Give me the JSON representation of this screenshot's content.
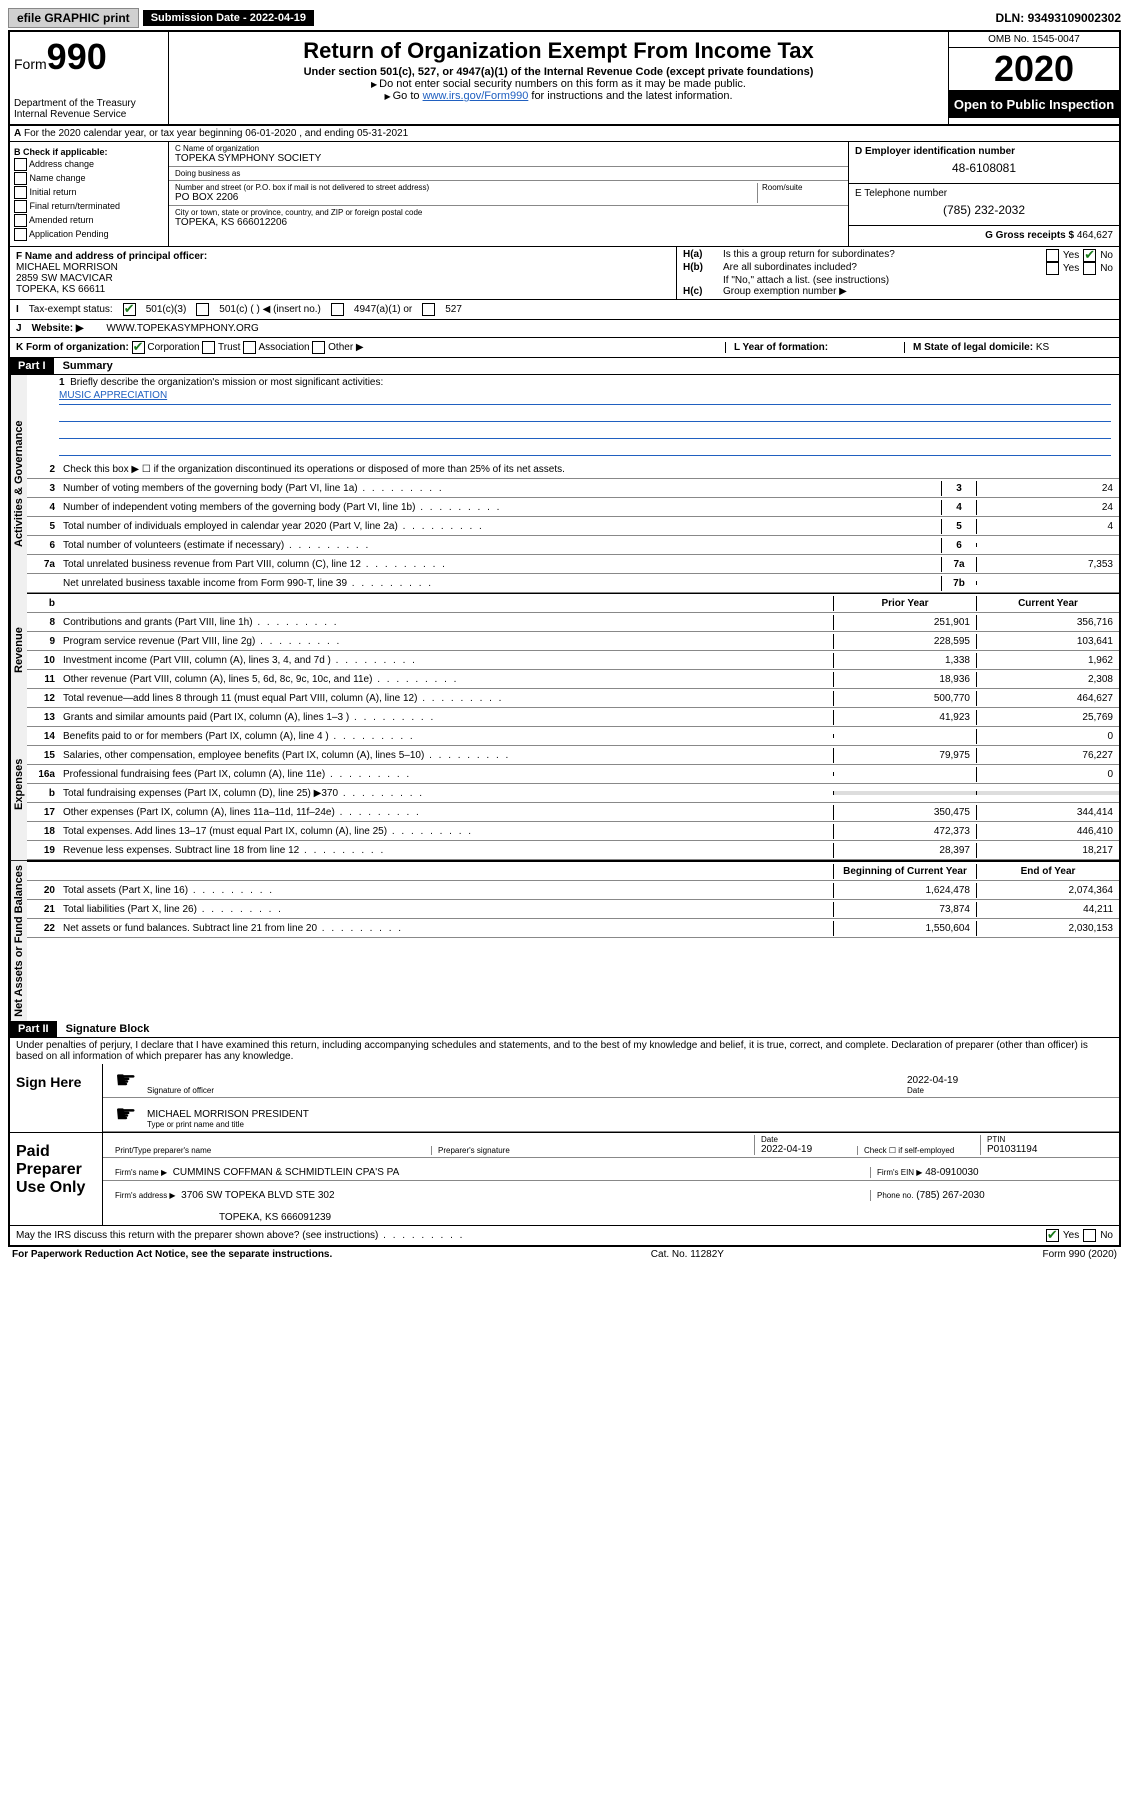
{
  "topbar": {
    "efile": "efile GRAPHIC print",
    "submission_label": "Submission Date - 2022-04-19",
    "dln_label": "DLN:",
    "dln": "93493109002302"
  },
  "header": {
    "form_word": "Form",
    "form_number": "990",
    "dept": "Department of the Treasury",
    "irs": "Internal Revenue Service",
    "title": "Return of Organization Exempt From Income Tax",
    "sub": "Under section 501(c), 527, or 4947(a)(1) of the Internal Revenue Code (except private foundations)",
    "instr1": "Do not enter social security numbers on this form as it may be made public.",
    "instr2_pre": "Go to ",
    "instr2_link": "www.irs.gov/Form990",
    "instr2_post": " for instructions and the latest information.",
    "omb": "OMB No. 1545-0047",
    "year": "2020",
    "inspection": "Open to Public Inspection"
  },
  "row_a": "For the 2020 calendar year, or tax year beginning 06-01-2020    , and ending 05-31-2021",
  "box_b": {
    "label": "B Check if applicable:",
    "items": [
      "Address change",
      "Name change",
      "Initial return",
      "Final return/terminated",
      "Amended return",
      "Application Pending"
    ]
  },
  "box_c": {
    "name_lbl": "C Name of organization",
    "name": "TOPEKA SYMPHONY SOCIETY",
    "dba_lbl": "Doing business as",
    "dba": "",
    "addr_lbl": "Number and street (or P.O. box if mail is not delivered to street address)",
    "room_lbl": "Room/suite",
    "addr": "PO BOX 2206",
    "city_lbl": "City or town, state or province, country, and ZIP or foreign postal code",
    "city": "TOPEKA, KS  666012206"
  },
  "box_d": {
    "lbl": "D Employer identification number",
    "val": "48-6108081"
  },
  "box_e": {
    "lbl": "E Telephone number",
    "val": "(785) 232-2032"
  },
  "box_g": {
    "lbl": "G Gross receipts $",
    "val": "464,627"
  },
  "box_f": {
    "lbl": "F  Name and address of principal officer:",
    "l1": "MICHAEL MORRISON",
    "l2": "2859 SW MACVICAR",
    "l3": "TOPEKA, KS  66611"
  },
  "box_h": {
    "ha": "Is this a group return for subordinates?",
    "hb": "Are all subordinates included?",
    "hnote": "If \"No,\" attach a list. (see instructions)",
    "hc": "Group exemption number ▶"
  },
  "tax_exempt": {
    "lbl": "Tax-exempt status:",
    "c1": "501(c)(3)",
    "c2": "501(c) (  ) ◀ (insert no.)",
    "c3": "4947(a)(1) or",
    "c4": "527"
  },
  "website": {
    "lbl": "Website: ▶",
    "val": "WWW.TOPEKASYMPHONY.ORG"
  },
  "korg": {
    "lbl": "K Form of organization:",
    "c1": "Corporation",
    "c2": "Trust",
    "c3": "Association",
    "c4": "Other ▶",
    "l_lbl": "L Year of formation:",
    "l_val": "",
    "m_lbl": "M State of legal domicile:",
    "m_val": "KS"
  },
  "part1": {
    "hdr": "Part I",
    "title": "Summary"
  },
  "mission": {
    "q": "Briefly describe the organization's mission or most significant activities:",
    "a": "MUSIC APPRECIATION"
  },
  "lines_top": {
    "l2": "Check this box ▶ ☐  if the organization discontinued its operations or disposed of more than 25% of its net assets.",
    "l3": {
      "t": "Number of voting members of the governing body (Part VI, line 1a)",
      "b": "3",
      "v": "24"
    },
    "l4": {
      "t": "Number of independent voting members of the governing body (Part VI, line 1b)",
      "b": "4",
      "v": "24"
    },
    "l5": {
      "t": "Total number of individuals employed in calendar year 2020 (Part V, line 2a)",
      "b": "5",
      "v": "4"
    },
    "l6": {
      "t": "Total number of volunteers (estimate if necessary)",
      "b": "6",
      "v": ""
    },
    "l7a": {
      "t": "Total unrelated business revenue from Part VIII, column (C), line 12",
      "b": "7a",
      "v": "7,353"
    },
    "l7b": {
      "t": "Net unrelated business taxable income from Form 990-T, line 39",
      "b": "7b",
      "v": ""
    }
  },
  "cols": {
    "prior": "Prior Year",
    "curr": "Current Year",
    "beg": "Beginning of Current Year",
    "end": "End of Year"
  },
  "revenue": [
    {
      "n": "8",
      "t": "Contributions and grants (Part VIII, line 1h)",
      "p": "251,901",
      "c": "356,716"
    },
    {
      "n": "9",
      "t": "Program service revenue (Part VIII, line 2g)",
      "p": "228,595",
      "c": "103,641"
    },
    {
      "n": "10",
      "t": "Investment income (Part VIII, column (A), lines 3, 4, and 7d )",
      "p": "1,338",
      "c": "1,962"
    },
    {
      "n": "11",
      "t": "Other revenue (Part VIII, column (A), lines 5, 6d, 8c, 9c, 10c, and 11e)",
      "p": "18,936",
      "c": "2,308"
    },
    {
      "n": "12",
      "t": "Total revenue—add lines 8 through 11 (must equal Part VIII, column (A), line 12)",
      "p": "500,770",
      "c": "464,627"
    }
  ],
  "expenses": [
    {
      "n": "13",
      "t": "Grants and similar amounts paid (Part IX, column (A), lines 1–3 )",
      "p": "41,923",
      "c": "25,769"
    },
    {
      "n": "14",
      "t": "Benefits paid to or for members (Part IX, column (A), line 4 )",
      "p": "",
      "c": "0"
    },
    {
      "n": "15",
      "t": "Salaries, other compensation, employee benefits (Part IX, column (A), lines 5–10)",
      "p": "79,975",
      "c": "76,227"
    },
    {
      "n": "16a",
      "t": "Professional fundraising fees (Part IX, column (A), line 11e)",
      "p": "",
      "c": "0"
    },
    {
      "n": "b",
      "t": "Total fundraising expenses (Part IX, column (D), line 25) ▶370",
      "p": "shade",
      "c": "shade"
    },
    {
      "n": "17",
      "t": "Other expenses (Part IX, column (A), lines 11a–11d, 11f–24e)",
      "p": "350,475",
      "c": "344,414"
    },
    {
      "n": "18",
      "t": "Total expenses. Add lines 13–17 (must equal Part IX, column (A), line 25)",
      "p": "472,373",
      "c": "446,410"
    },
    {
      "n": "19",
      "t": "Revenue less expenses. Subtract line 18 from line 12",
      "p": "28,397",
      "c": "18,217"
    }
  ],
  "netassets": [
    {
      "n": "20",
      "t": "Total assets (Part X, line 16)",
      "p": "1,624,478",
      "c": "2,074,364"
    },
    {
      "n": "21",
      "t": "Total liabilities (Part X, line 26)",
      "p": "73,874",
      "c": "44,211"
    },
    {
      "n": "22",
      "t": "Net assets or fund balances. Subtract line 21 from line 20",
      "p": "1,550,604",
      "c": "2,030,153"
    }
  ],
  "vtabs": {
    "ag": "Activities & Governance",
    "rev": "Revenue",
    "exp": "Expenses",
    "na": "Net Assets or Fund Balances"
  },
  "part2": {
    "hdr": "Part II",
    "title": "Signature Block"
  },
  "penalty": "Under penalties of perjury, I declare that I have examined this return, including accompanying schedules and statements, and to the best of my knowledge and belief, it is true, correct, and complete. Declaration of preparer (other than officer) is based on all information of which preparer has any knowledge.",
  "sign": {
    "here": "Sign Here",
    "sig_lbl": "Signature of officer",
    "date_lbl": "Date",
    "date": "2022-04-19",
    "name": "MICHAEL MORRISON  PRESIDENT",
    "name_lbl": "Type or print name and title"
  },
  "paid": {
    "here": "Paid Preparer Use Only",
    "pname_lbl": "Print/Type preparer's name",
    "psig_lbl": "Preparer's signature",
    "pdate_lbl": "Date",
    "pdate": "2022-04-19",
    "check_lbl": "Check ☐ if self-employed",
    "ptin_lbl": "PTIN",
    "ptin": "P01031194",
    "firm_lbl": "Firm's name   ▶",
    "firm": "CUMMINS COFFMAN & SCHMIDTLEIN CPA'S PA",
    "ein_lbl": "Firm's EIN ▶",
    "ein": "48-0910030",
    "addr_lbl": "Firm's address ▶",
    "addr1": "3706 SW TOPEKA BLVD STE 302",
    "addr2": "TOPEKA, KS  666091239",
    "phone_lbl": "Phone no.",
    "phone": "(785) 267-2030"
  },
  "discuss": "May the IRS discuss this return with the preparer shown above? (see instructions)",
  "footer": {
    "l": "For Paperwork Reduction Act Notice, see the separate instructions.",
    "m": "Cat. No. 11282Y",
    "r": "Form 990 (2020)"
  },
  "yes": "Yes",
  "no": "No"
}
